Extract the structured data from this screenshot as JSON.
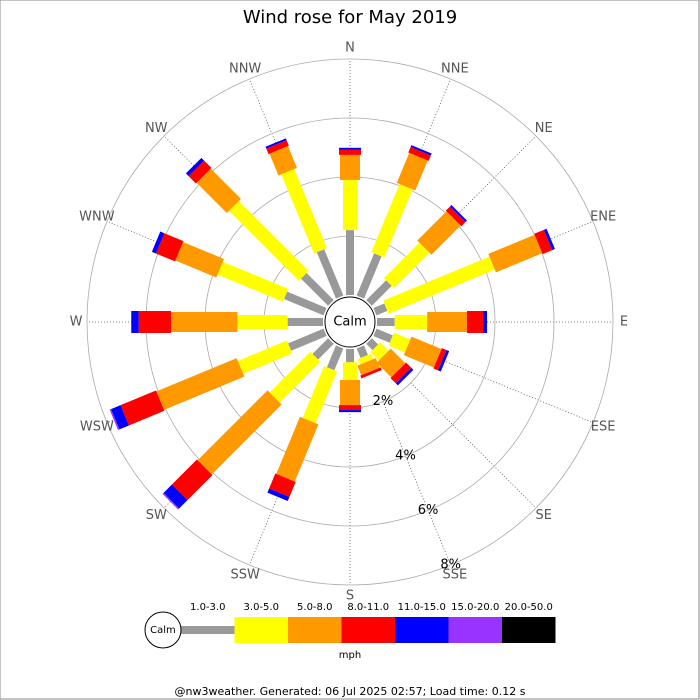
{
  "chart_data": {
    "type": "windrose",
    "title": "Wind rose for May 2019",
    "categories": [
      "N",
      "NNE",
      "NE",
      "ENE",
      "E",
      "ESE",
      "SE",
      "SSE",
      "S",
      "SSW",
      "SW",
      "WSW",
      "W",
      "WNW",
      "NW",
      "NNW"
    ],
    "center_label": "Calm",
    "unit": "mph",
    "footer": "@nw3weather. Generated: 06 Jul 2025 02:57; Load time: 0.12 s",
    "rlim": [
      0,
      8
    ],
    "rticks": [
      {
        "value": 2,
        "label": "2%"
      },
      {
        "value": 4,
        "label": "4%"
      },
      {
        "value": 6,
        "label": "6%"
      },
      {
        "value": 8,
        "label": "8%"
      }
    ],
    "grid": true,
    "series": [
      {
        "name": "1.0-3.0",
        "color": "#999999",
        "values": [
          2.2,
          1.55,
          0.95,
          0.4,
          0.6,
          0.6,
          0.3,
          0.35,
          0.45,
          0.8,
          0.75,
          1.3,
          1.2,
          1.45,
          1.3,
          1.7
        ]
      },
      {
        "name": "3.0-5.0",
        "color": "#ffff00",
        "values": [
          1.7,
          2.5,
          1.7,
          3.9,
          1.1,
          0.6,
          0.4,
          0.2,
          0.6,
          1.9,
          1.95,
          1.8,
          1.7,
          2.4,
          3.35,
          2.9
        ]
      },
      {
        "name": "5.0-8.0",
        "color": "#ff9900",
        "values": [
          0.85,
          1.1,
          1.4,
          1.7,
          1.35,
          1.1,
          0.7,
          0.35,
          0.85,
          2.1,
          3.35,
          2.95,
          2.25,
          1.5,
          1.45,
          0.8
        ]
      },
      {
        "name": "8.0-11.0",
        "color": "#ff0000",
        "values": [
          0.17,
          0.2,
          0.2,
          0.35,
          0.55,
          0.17,
          0.25,
          0.1,
          0.17,
          0.55,
          1.2,
          1.3,
          1.1,
          0.7,
          0.35,
          0.2
        ]
      },
      {
        "name": "11.0-15.0",
        "color": "#0000ff",
        "values": [
          0.07,
          0.07,
          0.07,
          0.1,
          0.13,
          0.1,
          0.1,
          0,
          0.07,
          0.15,
          0.4,
          0.35,
          0.25,
          0.15,
          0.13,
          0.07
        ]
      },
      {
        "name": "15.0-20.0",
        "color": "#9933ff",
        "values": [
          0,
          0,
          0,
          0,
          0,
          0,
          0,
          0,
          0,
          0,
          0.05,
          0.05,
          0,
          0,
          0,
          0
        ]
      },
      {
        "name": "20.0-50.0",
        "color": "#000000",
        "values": [
          0,
          0,
          0,
          0,
          0,
          0,
          0,
          0,
          0,
          0,
          0,
          0,
          0,
          0,
          0,
          0
        ]
      }
    ]
  }
}
